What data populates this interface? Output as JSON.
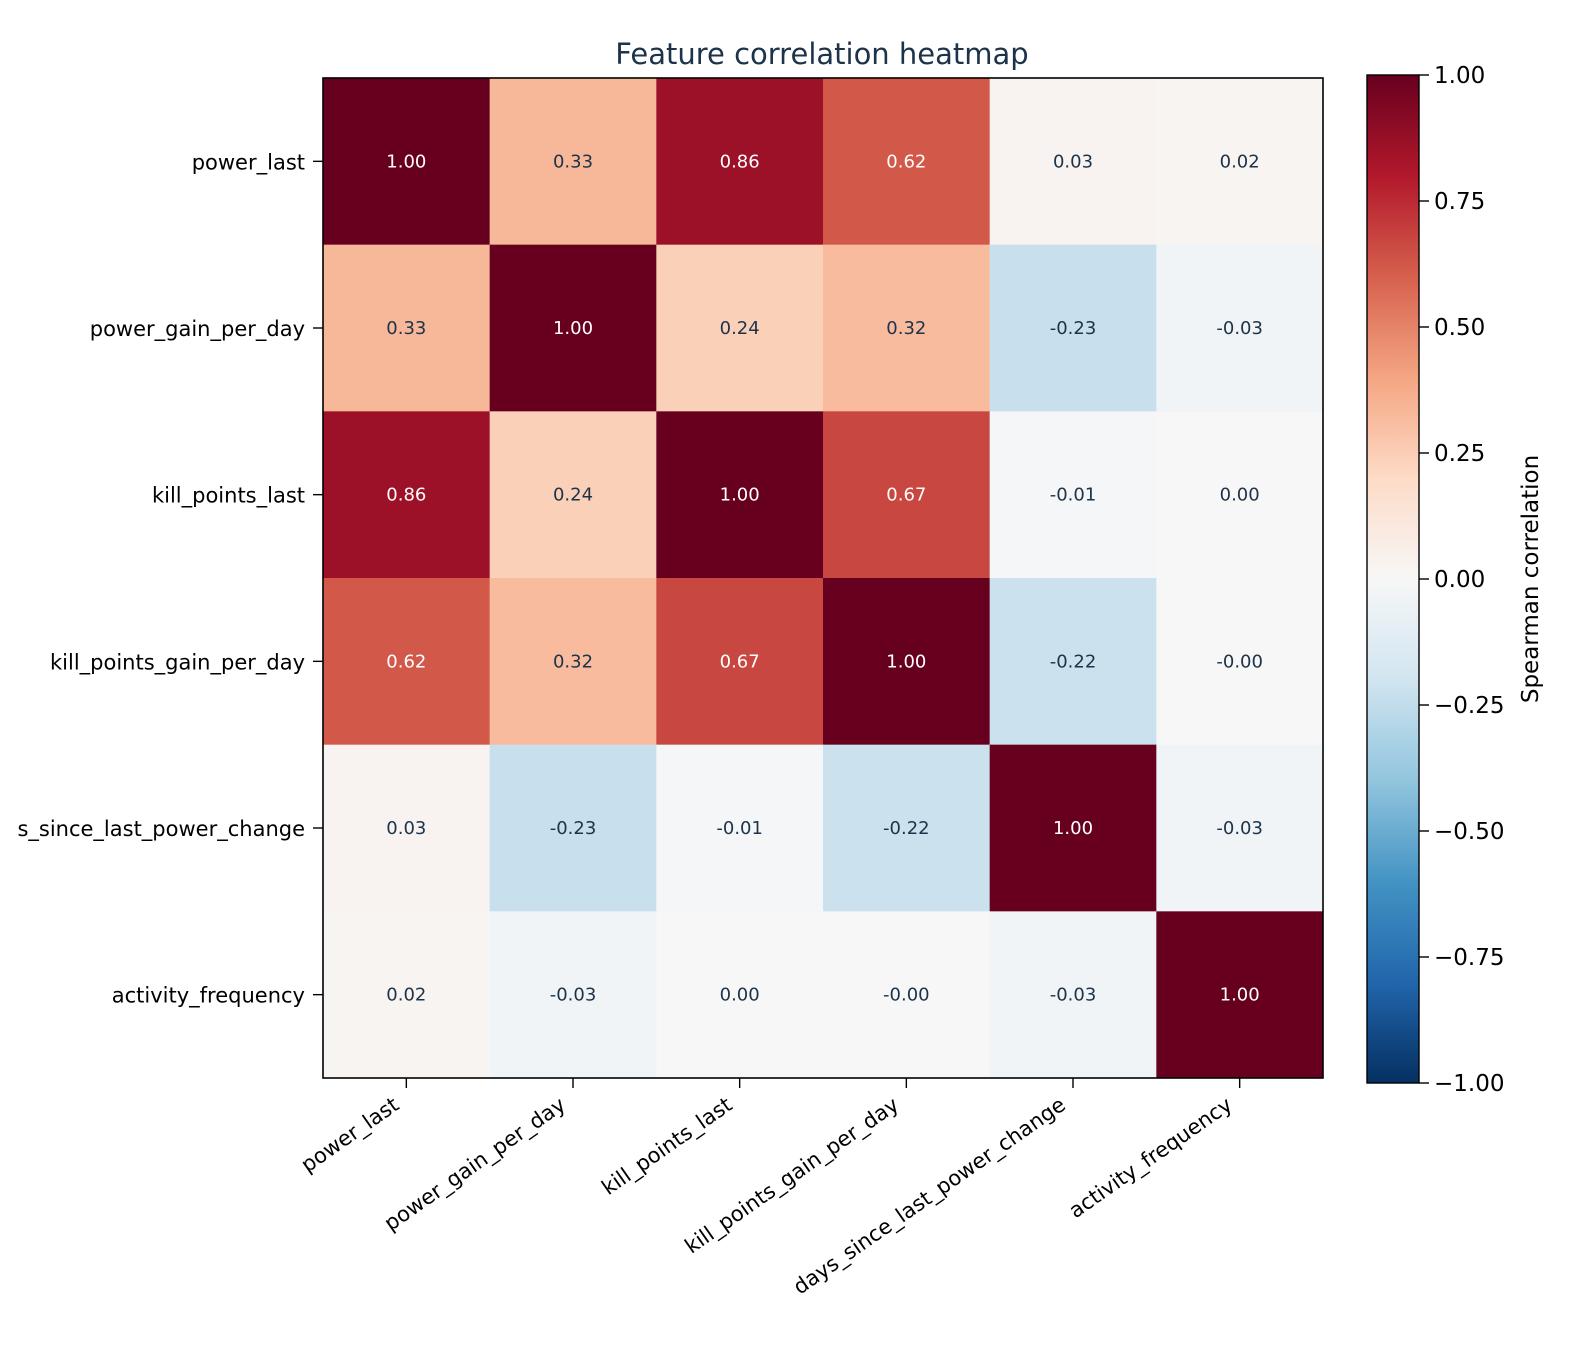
{
  "chart_data": {
    "type": "heatmap",
    "title": "Feature correlation heatmap",
    "xlabel": "",
    "ylabel": "",
    "row_labels": [
      "power_last",
      "power_gain_per_day",
      "kill_points_last",
      "kill_points_gain_per_day",
      "s_since_last_power_change",
      "activity_frequency"
    ],
    "col_labels": [
      "power_last",
      "power_gain_per_day",
      "kill_points_last",
      "kill_points_gain_per_day",
      "days_since_last_power_change",
      "activity_frequency"
    ],
    "values": [
      [
        1.0,
        0.33,
        0.86,
        0.62,
        0.03,
        0.02
      ],
      [
        0.33,
        1.0,
        0.24,
        0.32,
        -0.23,
        -0.03
      ],
      [
        0.86,
        0.24,
        1.0,
        0.67,
        -0.01,
        0.0
      ],
      [
        0.62,
        0.32,
        0.67,
        1.0,
        -0.22,
        -0.001
      ],
      [
        0.03,
        -0.23,
        -0.01,
        -0.22,
        1.0,
        -0.03
      ],
      [
        0.02,
        -0.03,
        0.0,
        -0.001,
        -0.03,
        1.0
      ]
    ],
    "cell_labels": [
      [
        "1.00",
        "0.33",
        "0.86",
        "0.62",
        "0.03",
        "0.02"
      ],
      [
        "0.33",
        "1.00",
        "0.24",
        "0.32",
        "-0.23",
        "-0.03"
      ],
      [
        "0.86",
        "0.24",
        "1.00",
        "0.67",
        "-0.01",
        "0.00"
      ],
      [
        "0.62",
        "0.32",
        "0.67",
        "1.00",
        "-0.22",
        "-0.00"
      ],
      [
        "0.03",
        "-0.23",
        "-0.01",
        "-0.22",
        "1.00",
        "-0.03"
      ],
      [
        "0.02",
        "-0.03",
        "0.00",
        "-0.00",
        "-0.03",
        "1.00"
      ]
    ],
    "colorbar": {
      "label": "Spearman correlation",
      "range": [
        -1,
        1
      ],
      "ticks": [
        1.0,
        0.75,
        0.5,
        0.25,
        0.0,
        -0.25,
        -0.5,
        -0.75,
        -1.0
      ],
      "tick_labels": [
        "1.00",
        "0.75",
        "0.50",
        "0.25",
        "0.00",
        "−0.25",
        "−0.50",
        "−0.75",
        "−1.00"
      ],
      "colormap": "RdBu_r"
    },
    "colors": {
      "title": "#1d3349",
      "text_dark": "#1d3349",
      "text_light": "#ffffff"
    }
  }
}
